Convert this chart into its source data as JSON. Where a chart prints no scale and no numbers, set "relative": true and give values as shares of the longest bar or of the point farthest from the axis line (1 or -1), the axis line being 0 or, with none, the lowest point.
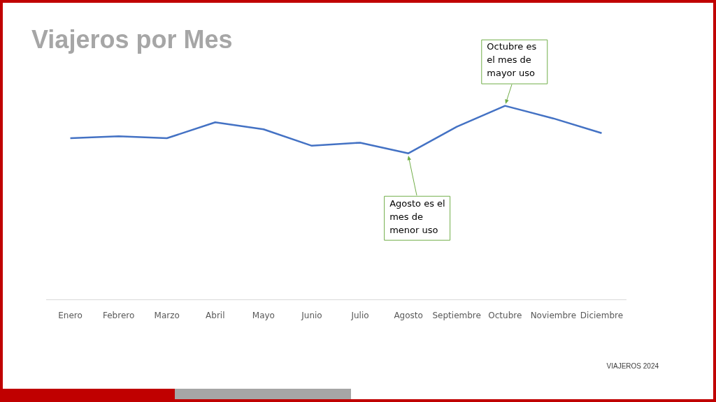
{
  "chart_data": {
    "type": "line",
    "title": "Viajeros por Mes",
    "relative": true,
    "categories": [
      "Enero",
      "Febrero",
      "Marzo",
      "Abril",
      "Mayo",
      "Junio",
      "Julio",
      "Agosto",
      "Septiembre",
      "Octubre",
      "Noviembre",
      "Diciembre"
    ],
    "series": [
      {
        "color": "#4472c4",
        "values": [
          0.833,
          0.843,
          0.833,
          0.915,
          0.879,
          0.794,
          0.81,
          0.755,
          0.892,
          1,
          0.935,
          0.859
        ]
      }
    ],
    "legend": false,
    "marker": "none",
    "line_style": "solid",
    "annotations": [
      {
        "text": "Octubre es el mes de mayor uso",
        "x": "Octubre",
        "y": 1
      },
      {
        "text": "Agosto es el mes de menor uso",
        "x": "Agosto",
        "y": 0.755
      },
      "VIAJEROS 2024"
    ]
  }
}
